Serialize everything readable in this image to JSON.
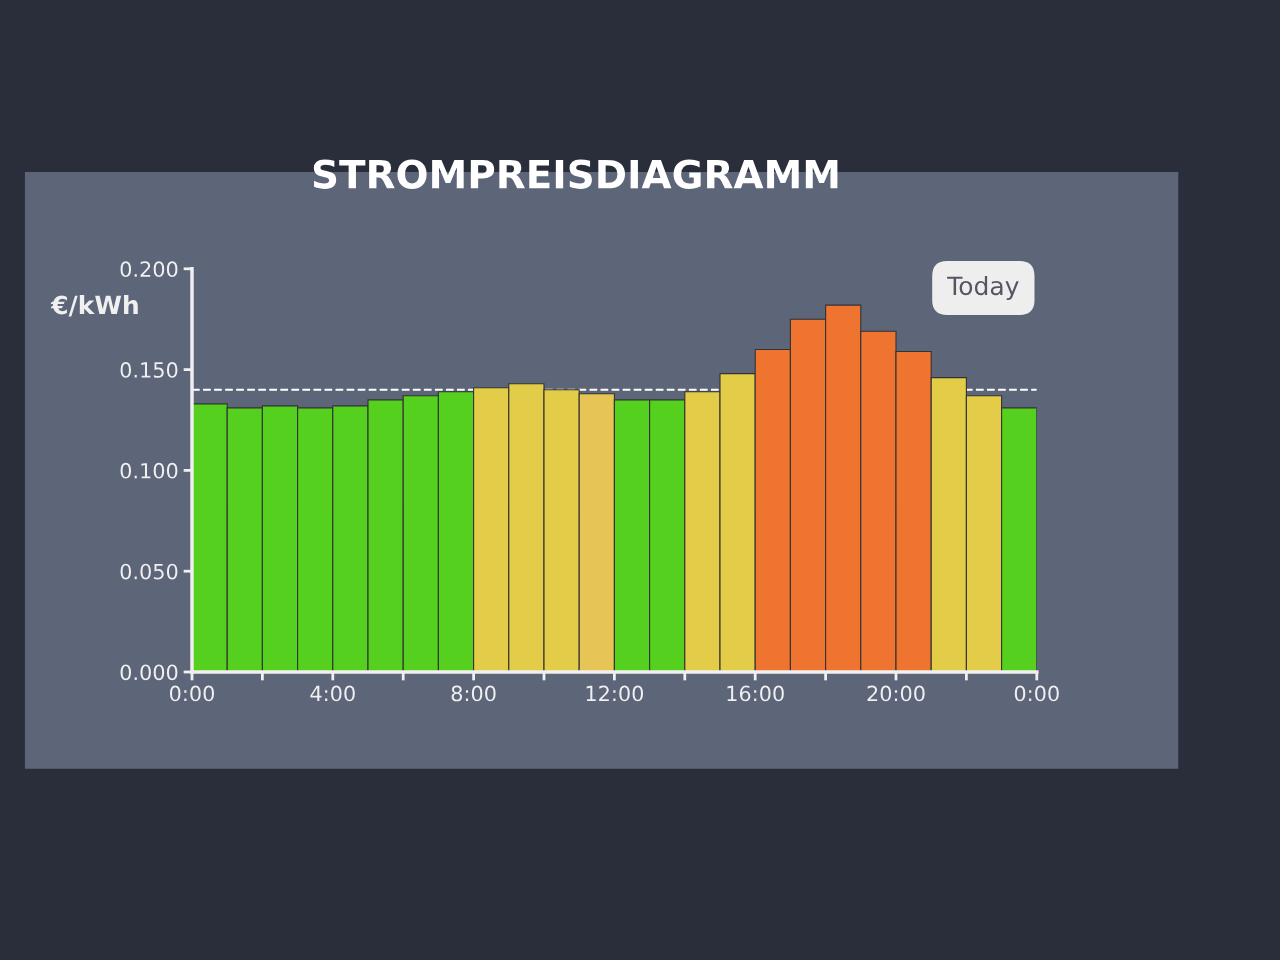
{
  "chart_data": {
    "type": "bar",
    "title": "STROMPREISDIAGRAMM",
    "ylabel": "€/kWh",
    "x": [
      0.5,
      1.5,
      2.5,
      3.5,
      4.5,
      5.5,
      6.5,
      7.5,
      8.5,
      9.5,
      10.5,
      11.5,
      12.5,
      13.5,
      14.5,
      15.5,
      16.5,
      17.5,
      18.5,
      19.5,
      20.5,
      21.5,
      22.5,
      23.5
    ],
    "values": [
      0.133,
      0.131,
      0.132,
      0.131,
      0.132,
      0.135,
      0.137,
      0.139,
      0.141,
      0.143,
      0.14,
      0.138,
      0.135,
      0.135,
      0.139,
      0.148,
      0.16,
      0.175,
      0.182,
      0.169,
      0.159,
      0.146,
      0.137,
      0.131
    ],
    "colors": [
      "#55d01e",
      "#55d01e",
      "#55d01e",
      "#55d01e",
      "#55d01e",
      "#55d01e",
      "#55d01e",
      "#55d01e",
      "#e2cc48",
      "#e2cc48",
      "#e2cc48",
      "#e6c455",
      "#55d01e",
      "#55d01e",
      "#e2cc48",
      "#e2cc48",
      "#ee7430",
      "#ee7430",
      "#ee7430",
      "#ee7430",
      "#ee7430",
      "#e2cc48",
      "#e2cc48",
      "#55d01e"
    ],
    "xlim": [
      0,
      24
    ],
    "xticks": [
      {
        "value": 0,
        "label": "0:00"
      },
      {
        "value": 2,
        "label": null
      },
      {
        "value": 4,
        "label": "4:00"
      },
      {
        "value": 6,
        "label": null
      },
      {
        "value": 8,
        "label": "8:00"
      },
      {
        "value": 10,
        "label": null
      },
      {
        "value": 12,
        "label": "12:00"
      },
      {
        "value": 14,
        "label": null
      },
      {
        "value": 16,
        "label": "16:00"
      },
      {
        "value": 18,
        "label": null
      },
      {
        "value": 20,
        "label": "20:00"
      },
      {
        "value": 22,
        "label": null
      },
      {
        "value": 24,
        "label": "0:00"
      }
    ],
    "ylim": [
      0,
      0.2
    ],
    "yticks": [
      {
        "value": 0,
        "label": "0.000"
      },
      {
        "value": 0.05,
        "label": "0.050"
      },
      {
        "value": 0.1,
        "label": "0.100"
      },
      {
        "value": 0.15,
        "label": "0.150"
      },
      {
        "value": 0.2,
        "label": "0.200"
      }
    ],
    "ref_lines": [
      {
        "axis": "y",
        "value": 0.14,
        "color": "#ffffff",
        "line_style": "dashed"
      }
    ],
    "annotations": [
      "Today"
    ],
    "grid": false,
    "legend": false
  }
}
